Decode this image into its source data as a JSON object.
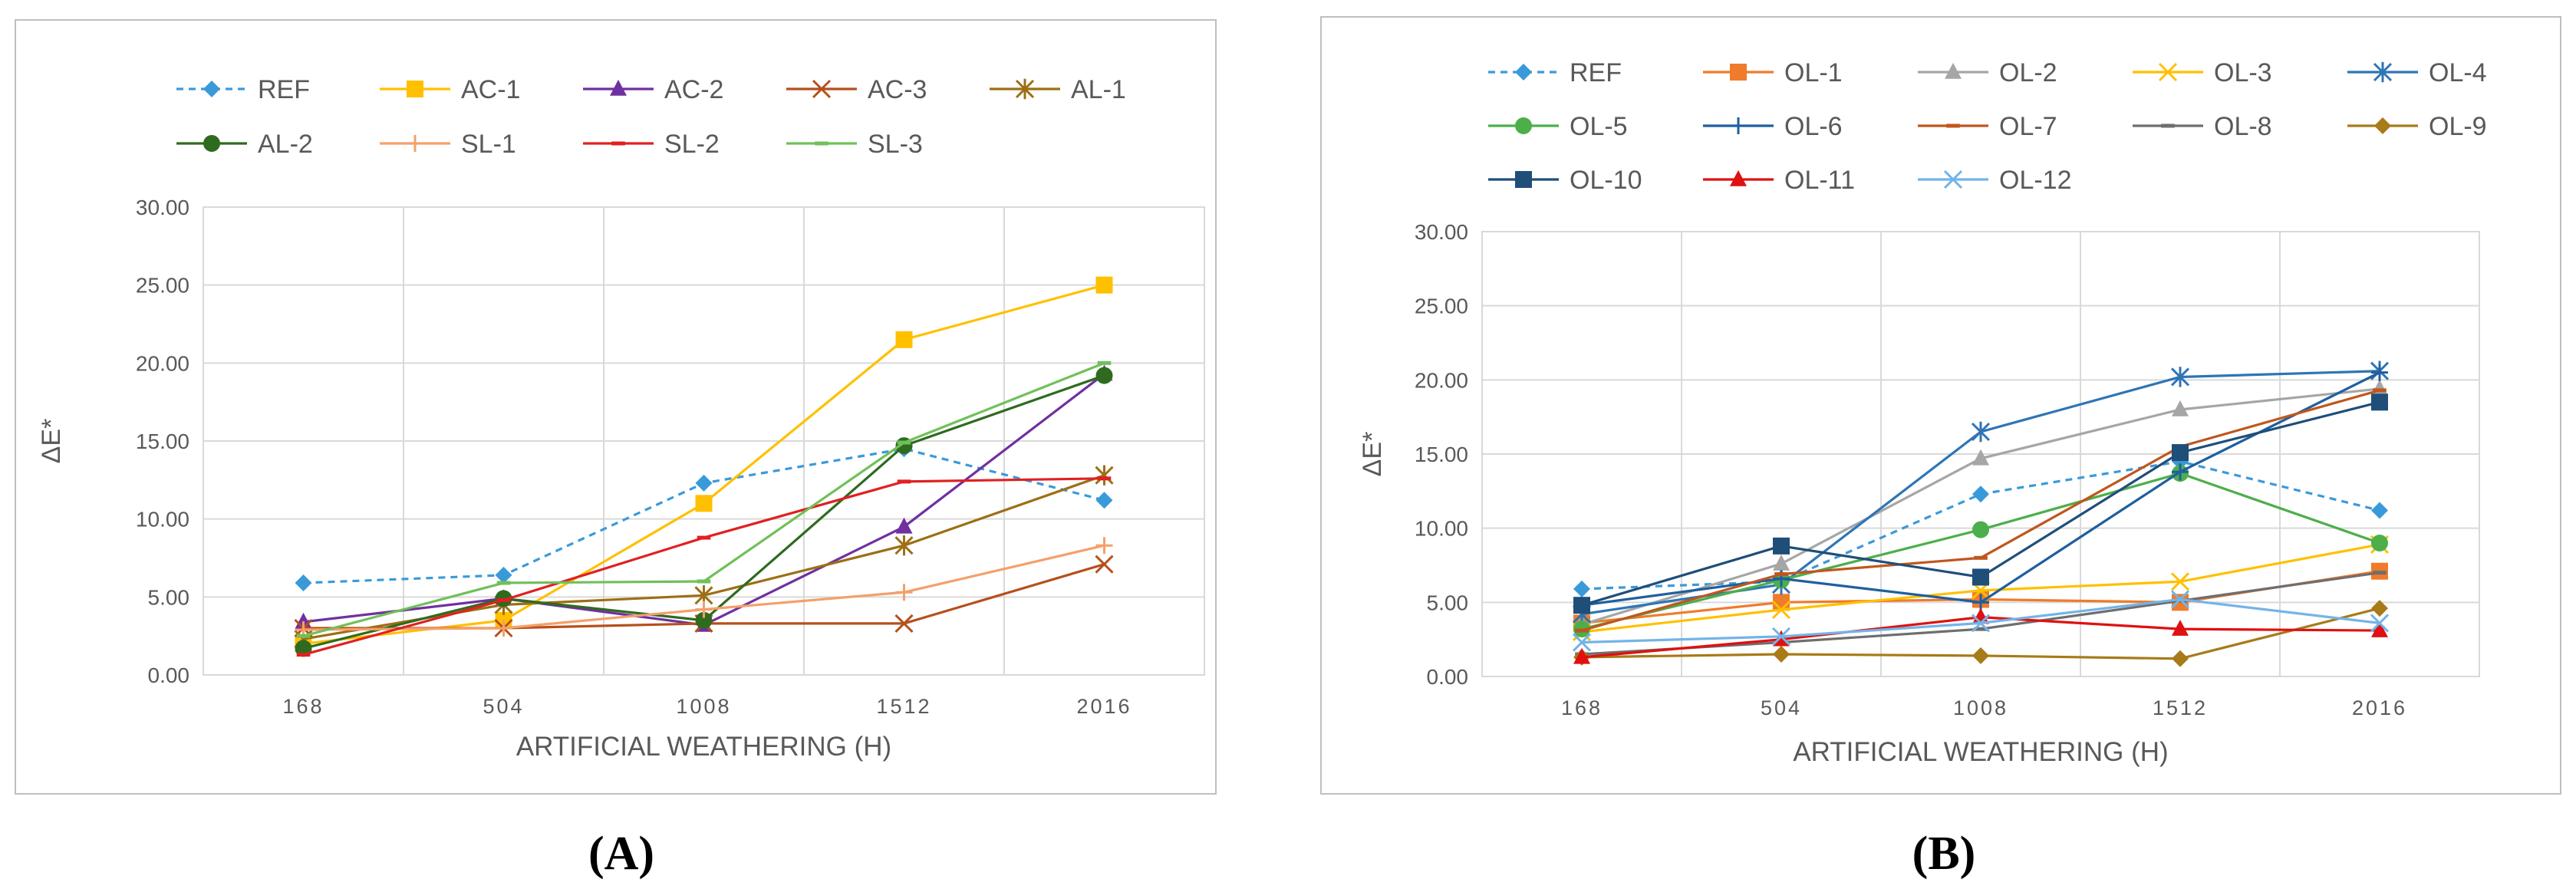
{
  "colors": {
    "REF": "#3a9ad9",
    "AC-1": "#ffc000",
    "AC-2": "#7030a0",
    "AC-3": "#b5501c",
    "AL-1": "#9c6f15",
    "AL-2": "#2e6b1f",
    "SL-1": "#f4a06a",
    "SL-2": "#e02020",
    "SL-3": "#70c05a",
    "OL-1": "#f07b2a",
    "OL-2": "#a6a6a6",
    "OL-3": "#ffc000",
    "OL-4": "#2e75b6",
    "OL-5": "#4caf4a",
    "OL-6": "#1f5f9e",
    "OL-7": "#c0561d",
    "OL-8": "#6e6e6e",
    "OL-9": "#a87a18",
    "OL-10": "#1f4e79",
    "OL-11": "#e01010",
    "OL-12": "#73b4e8"
  },
  "chart_data": [
    {
      "type": "line",
      "panel_label": "(A)",
      "title": "",
      "xlabel": "ARTIFICIAL WEATHERING (H)",
      "ylabel": "ΔE*",
      "categories": [
        "168",
        "504",
        "1008",
        "1512",
        "2016"
      ],
      "ylim": [
        0,
        30
      ],
      "yticks": [
        "0.00",
        "5.00",
        "10.00",
        "15.00",
        "20.00",
        "25.00",
        "30.00"
      ],
      "grid": true,
      "legend_position": "top",
      "series": [
        {
          "name": "REF",
          "marker": "diamond",
          "dashed": true,
          "values": [
            5.9,
            6.4,
            12.3,
            14.5,
            11.2
          ]
        },
        {
          "name": "AC-1",
          "marker": "square",
          "dashed": false,
          "values": [
            2.0,
            3.5,
            11.0,
            21.5,
            25.0
          ]
        },
        {
          "name": "AC-2",
          "marker": "triangle",
          "dashed": false,
          "values": [
            3.4,
            4.9,
            3.2,
            9.5,
            19.3
          ]
        },
        {
          "name": "AC-3",
          "marker": "x",
          "dashed": false,
          "values": [
            3.0,
            3.0,
            3.3,
            3.3,
            7.1
          ]
        },
        {
          "name": "AL-1",
          "marker": "star",
          "dashed": false,
          "values": [
            2.3,
            4.5,
            5.1,
            8.3,
            12.8
          ]
        },
        {
          "name": "AL-2",
          "marker": "circle",
          "dashed": false,
          "values": [
            1.7,
            4.9,
            3.5,
            14.7,
            19.2
          ]
        },
        {
          "name": "SL-1",
          "marker": "plus",
          "dashed": false,
          "values": [
            2.9,
            3.0,
            4.2,
            5.3,
            8.3
          ]
        },
        {
          "name": "SL-2",
          "marker": "dash",
          "dashed": false,
          "values": [
            1.3,
            4.8,
            8.8,
            12.4,
            12.6
          ]
        },
        {
          "name": "SL-3",
          "marker": "dash",
          "dashed": false,
          "values": [
            2.5,
            5.9,
            6.0,
            14.9,
            20.0
          ]
        }
      ]
    },
    {
      "type": "line",
      "panel_label": "(B)",
      "title": "",
      "xlabel": "ARTIFICIAL WEATHERING (H)",
      "ylabel": "ΔE*",
      "categories": [
        "168",
        "504",
        "1008",
        "1512",
        "2016"
      ],
      "ylim": [
        0,
        30
      ],
      "yticks": [
        "0.00",
        "5.00",
        "10.00",
        "15.00",
        "20.00",
        "25.00",
        "30.00"
      ],
      "grid": true,
      "legend_position": "top",
      "series": [
        {
          "name": "REF",
          "marker": "diamond",
          "dashed": true,
          "values": [
            5.9,
            6.4,
            12.3,
            14.5,
            11.2
          ]
        },
        {
          "name": "OL-1",
          "marker": "square",
          "dashed": false,
          "values": [
            3.6,
            5.0,
            5.2,
            5.0,
            7.1
          ]
        },
        {
          "name": "OL-2",
          "marker": "triangle",
          "dashed": false,
          "values": [
            3.5,
            7.6,
            14.7,
            18.0,
            19.4
          ]
        },
        {
          "name": "OL-3",
          "marker": "x",
          "dashed": false,
          "values": [
            3.0,
            4.5,
            5.8,
            6.4,
            8.9
          ]
        },
        {
          "name": "OL-4",
          "marker": "star",
          "dashed": false,
          "values": [
            4.2,
            6.2,
            16.5,
            20.2,
            20.6
          ]
        },
        {
          "name": "OL-5",
          "marker": "circle",
          "dashed": false,
          "values": [
            3.2,
            6.5,
            9.9,
            13.7,
            9.0
          ]
        },
        {
          "name": "OL-6",
          "marker": "plus",
          "dashed": false,
          "values": [
            4.8,
            6.6,
            5.0,
            13.8,
            20.5
          ]
        },
        {
          "name": "OL-7",
          "marker": "dash",
          "dashed": false,
          "values": [
            3.1,
            6.9,
            8.0,
            15.5,
            19.3
          ]
        },
        {
          "name": "OL-8",
          "marker": "dash",
          "dashed": false,
          "values": [
            1.5,
            2.3,
            3.2,
            5.1,
            7.0
          ]
        },
        {
          "name": "OL-9",
          "marker": "diamond",
          "dashed": false,
          "values": [
            1.3,
            1.5,
            1.4,
            1.2,
            4.6
          ]
        },
        {
          "name": "OL-10",
          "marker": "square",
          "dashed": false,
          "values": [
            4.8,
            8.8,
            6.7,
            15.1,
            18.5
          ]
        },
        {
          "name": "OL-11",
          "marker": "triangle",
          "dashed": false,
          "values": [
            1.3,
            2.5,
            4.0,
            3.2,
            3.1
          ]
        },
        {
          "name": "OL-12",
          "marker": "x",
          "dashed": false,
          "values": [
            2.3,
            2.7,
            3.6,
            5.2,
            3.6
          ]
        }
      ]
    }
  ]
}
